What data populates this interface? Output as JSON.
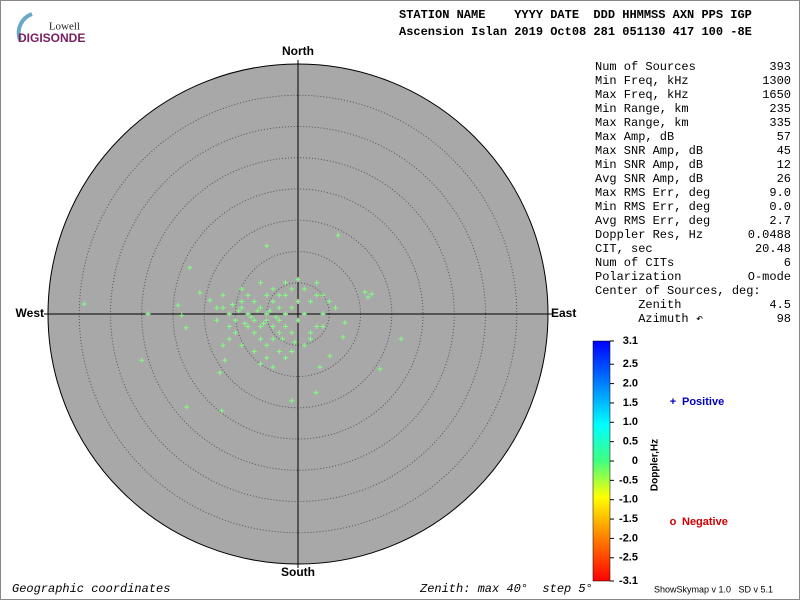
{
  "logo": {
    "top": "Lowell",
    "bottom": "DIGISONDE"
  },
  "header": {
    "line1": "STATION NAME    YYYY DATE  DDD HHMMSS AXN PPS IGP",
    "line2": "Ascension Islan 2019 Oct08 281 051130 417 100 -8E"
  },
  "stats": [
    [
      "Num of Sources",
      "393"
    ],
    [
      "Min Freq, kHz",
      "1300"
    ],
    [
      "Max Freq, kHz",
      "1650"
    ],
    [
      "Min Range, km",
      "235"
    ],
    [
      "Max Range, km",
      "335"
    ],
    [
      "Max Amp, dB",
      "57"
    ],
    [
      "Max SNR Amp, dB",
      "45"
    ],
    [
      "Min SNR Amp, dB",
      "12"
    ],
    [
      "Avg SNR Amp, dB",
      "26"
    ],
    [
      "Max RMS Err, deg",
      "9.0"
    ],
    [
      "Min RMS Err, deg",
      "0.0"
    ],
    [
      "Avg RMS Err, deg",
      "2.7"
    ],
    [
      "Doppler Res, Hz",
      "0.0488"
    ],
    [
      "CIT, sec",
      "20.48"
    ],
    [
      "Num of CITs",
      "6"
    ],
    [
      "Polarization",
      "O-mode"
    ],
    [
      "Center of Sources, deg:",
      ""
    ],
    [
      "      Zenith",
      "4.5"
    ],
    [
      "      Azimuth ↶",
      "98"
    ]
  ],
  "chart_data": {
    "type": "polar-scatter",
    "directions": {
      "north": "North",
      "south": "South",
      "east": "East",
      "west": "West"
    },
    "rlim": [
      0,
      40
    ],
    "rticks": [
      5,
      10,
      15,
      20,
      25,
      30,
      35
    ],
    "marker_color": "#80ff80",
    "series": [
      {
        "name": "Positive",
        "color": "#0000c0",
        "symbol": "+",
        "x": [
          -34.2,
          -24,
          -25,
          -17.8,
          -12.2,
          -1,
          2.9,
          13.1,
          16.5,
          6.4,
          -5,
          -17.3,
          10.7,
          11.8,
          11.2,
          7.5,
          7.2,
          5.1,
          3.5,
          -12.5,
          -11.7,
          -19.2,
          -18.6,
          -17.9,
          -15.7,
          -14.1,
          -5,
          -6,
          -4,
          -3,
          -7,
          -8,
          -9,
          -10,
          -6,
          -5,
          -4,
          -3,
          -2,
          -1,
          0,
          -2,
          -3,
          -5,
          -7,
          -8,
          -9,
          -11,
          -12,
          -11,
          -10,
          -8,
          -7,
          -6,
          -5,
          -4,
          -3,
          -2,
          -1,
          0,
          1,
          2,
          3,
          1,
          -1,
          -4,
          -6,
          -9,
          -12,
          -13,
          -13,
          -9,
          -7,
          -5,
          -3,
          -1,
          1,
          2,
          3,
          4,
          5,
          4,
          6,
          -0.5,
          -2.5,
          -6.5,
          -7.5,
          -4.5,
          -5.5,
          -3.5,
          -8.5,
          -9.5,
          -10.5,
          -2,
          0,
          3,
          -6,
          -4,
          -2,
          -11,
          -12,
          2,
          4
        ],
        "y": [
          1.6,
          0,
          -7.4,
          -14.9,
          -15.5,
          -13.9,
          -12.6,
          -8.8,
          -4,
          12.6,
          10.9,
          7.4,
          3.5,
          3.2,
          2.7,
          -1.4,
          -3.7,
          -6.7,
          -8.5,
          -9.4,
          -7.4,
          1.4,
          -0.2,
          -2.2,
          3.4,
          2.2,
          0,
          1,
          2,
          1,
          -1,
          0,
          1,
          -1,
          -2,
          -1,
          -2,
          -1,
          0,
          1,
          2,
          3,
          3,
          3,
          2,
          3,
          2,
          0,
          1,
          -2,
          -3,
          -2,
          -3,
          -4,
          -5,
          -4,
          -3,
          -2,
          -3,
          -1,
          0,
          2,
          3,
          4,
          4,
          4,
          5,
          4,
          3,
          -1,
          1,
          -5,
          -6,
          -7,
          -6,
          -6,
          -5,
          -3,
          -2,
          0,
          2,
          3,
          1,
          -4.5,
          -4,
          0.5,
          -0.5,
          0.5,
          -1.5,
          -0.5,
          -1.5,
          0.5,
          1.5,
          5,
          5.5,
          5,
          -8,
          -8.5,
          -7,
          -4,
          -5,
          -4,
          -2
        ]
      },
      {
        "name": "Negative",
        "color": "#d00000",
        "symbol": "o",
        "x": [],
        "y": []
      }
    ]
  },
  "colorbar": {
    "label": "Doppler,Hz",
    "lim": [
      -3.1,
      3.1
    ],
    "ticks": [
      3.1,
      2.5,
      {
        "value": 2,
        "label": "2.0"
      },
      1.5,
      {
        "value": 1,
        "label": "1.0"
      },
      0.5,
      0,
      -0.5,
      {
        "value": -1,
        "label": "-1.0"
      },
      -1.5,
      {
        "value": -2,
        "label": "-2.0"
      },
      -2.5,
      -3.1
    ]
  },
  "footer": {
    "left": "Geographic coordinates",
    "center": "Zenith: max 40°  step 5°",
    "right": "ShowSkymap v 1.0   SD v 5.1"
  }
}
